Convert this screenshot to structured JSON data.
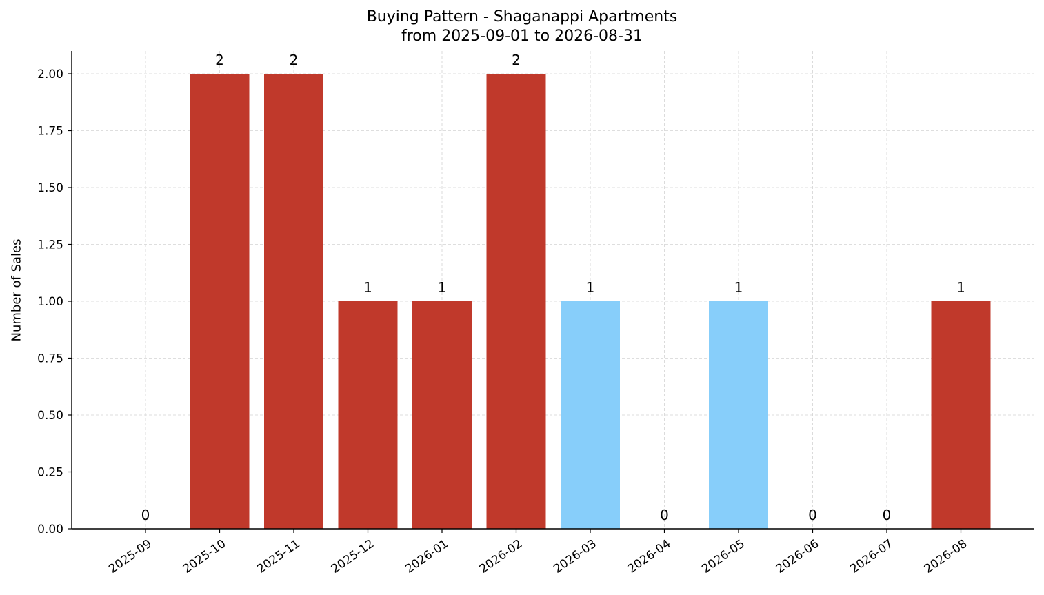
{
  "chart_data": {
    "type": "bar",
    "title": "Buying Pattern - Shaganappi Apartments",
    "subtitle": "from 2025-09-01 to 2026-08-31",
    "xlabel": "",
    "ylabel": "Number of Sales",
    "categories": [
      "2025-09",
      "2025-10",
      "2025-11",
      "2025-12",
      "2026-01",
      "2026-02",
      "2026-03",
      "2026-04",
      "2026-05",
      "2026-06",
      "2026-07",
      "2026-08"
    ],
    "values": [
      0,
      2,
      2,
      1,
      1,
      2,
      1,
      0,
      1,
      0,
      0,
      1
    ],
    "bar_colors": [
      "#c0392b",
      "#c0392b",
      "#c0392b",
      "#c0392b",
      "#c0392b",
      "#c0392b",
      "#87cefa",
      "#c0392b",
      "#87cefa",
      "#c0392b",
      "#c0392b",
      "#c0392b"
    ],
    "ylim": [
      0,
      2.1
    ],
    "yticks": [
      "0.00",
      "0.25",
      "0.50",
      "0.75",
      "1.00",
      "1.25",
      "1.50",
      "1.75",
      "2.00"
    ],
    "grid": true,
    "legend": "none"
  }
}
